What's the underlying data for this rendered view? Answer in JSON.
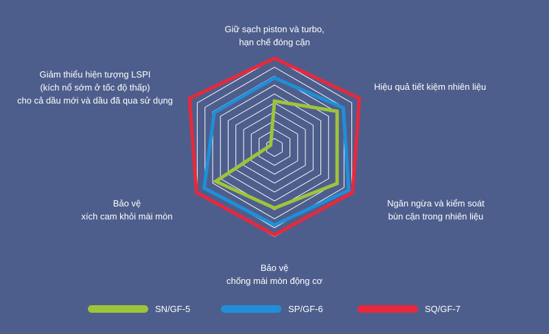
{
  "chart_data": {
    "type": "radar",
    "axes": [
      "Giữ sạch piston và turbo,\nhạn chế đóng cặn",
      "Hiệu quả tiết kiệm nhiên liệu",
      "Ngăn ngừa và kiểm soát\nbùn cặn trong nhiên liệu",
      "Bảo vệ\nchống mài mòn động cơ",
      "Bảo vệ\nxích cam khỏi mài mòn",
      "Giảm thiểu hiện tượng LSPI\n(kích nổ sớm ở tốc độ thấp)\ncho cả dầu mới và dầu đã qua sử dụng"
    ],
    "rlim": [
      0,
      10
    ],
    "rings": 10,
    "grid": true,
    "legend_position": "bottom",
    "series": [
      {
        "name": "SN/GF-5",
        "color": "#9fc43a",
        "values": [
          5.2,
          8.1,
          8.1,
          6.8,
          7.6,
          0.5
        ]
      },
      {
        "name": "SP/GF-6",
        "color": "#1f8fd8",
        "values": [
          7.8,
          8.9,
          9.6,
          8.7,
          9.1,
          7.8
        ]
      },
      {
        "name": "SQ/GF-7",
        "color": "#e8283c",
        "values": [
          10.0,
          11.0,
          10.1,
          9.8,
          10.1,
          11.0
        ]
      }
    ]
  }
}
